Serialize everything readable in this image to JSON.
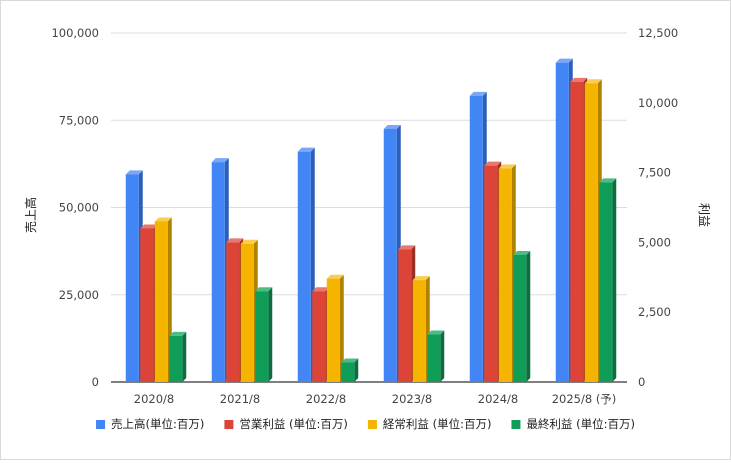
{
  "chart_data": {
    "type": "bar",
    "style": "3d-clustered-bar-dual-axis",
    "categories": [
      "2020/8",
      "2021/8",
      "2022/8",
      "2023/8",
      "2024/8",
      "2025/8 (予)"
    ],
    "left_axis": {
      "label": "売上高",
      "ylim": [
        0,
        100000
      ],
      "ticks": [
        "0",
        "25,000",
        "50,000",
        "75,000",
        "100,000"
      ]
    },
    "right_axis": {
      "label": "利益",
      "ylim": [
        0,
        12500
      ],
      "ticks": [
        "0",
        "2,500",
        "5,000",
        "7,500",
        "10,000",
        "12,500"
      ]
    },
    "series": [
      {
        "name": "売上高(単位:百万)",
        "axis": "left",
        "color": "#4285f4",
        "side_color": "#2c5fb8",
        "top_color": "#7aa7f7",
        "values": [
          59500,
          63000,
          66000,
          72500,
          82000,
          91500
        ]
      },
      {
        "name": "営業利益 (単位:百万)",
        "axis": "right",
        "color": "#db4437",
        "side_color": "#9c2f25",
        "top_color": "#e8776c",
        "values": [
          5500,
          5000,
          3250,
          4750,
          7750,
          10750
        ]
      },
      {
        "name": "経常利益 (単位:百万)",
        "axis": "right",
        "color": "#f4b400",
        "side_color": "#b08200",
        "top_color": "#f8cd52",
        "values": [
          5750,
          4950,
          3700,
          3650,
          7650,
          10700
        ]
      },
      {
        "name": "最終利益 (単位:百万)",
        "axis": "right",
        "color": "#0f9d58",
        "side_color": "#0a6e3e",
        "top_color": "#4dbb85",
        "values": [
          1650,
          3250,
          700,
          1700,
          4550,
          7150
        ]
      }
    ],
    "grid": true,
    "legend_position": "bottom"
  }
}
